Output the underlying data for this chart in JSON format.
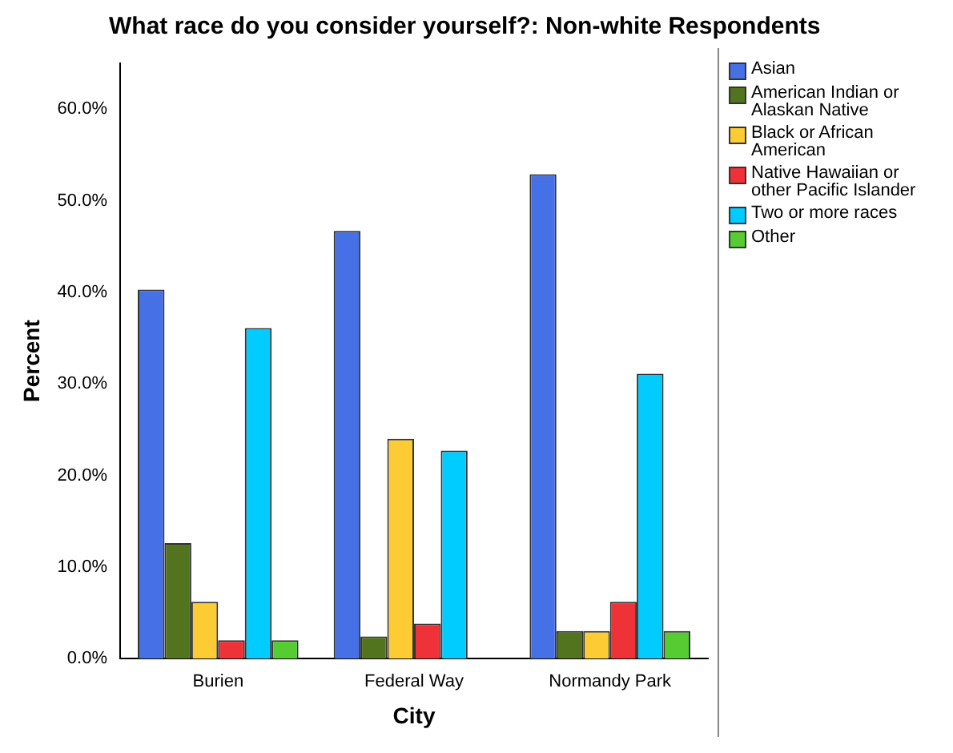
{
  "chart_data": {
    "type": "bar",
    "title": "What race do you consider yourself?: Non-white Respondents",
    "xlabel": "City",
    "ylabel": "Percent",
    "categories": [
      "Burien",
      "Federal Way",
      "Normandy Park"
    ],
    "series": [
      {
        "name": "Asian",
        "color": "#4670e6",
        "values": [
          40.3,
          46.7,
          52.9
        ]
      },
      {
        "name": "American Indian or Alaskan Native",
        "color": "#52741f",
        "values": [
          12.6,
          2.4,
          3.0
        ]
      },
      {
        "name": "Black or African American",
        "color": "#fdcb33",
        "values": [
          6.2,
          24.0,
          3.0
        ]
      },
      {
        "name": "Native Hawaiian or other Pacific Islander",
        "color": "#ef3138",
        "values": [
          2.0,
          3.8,
          6.2
        ]
      },
      {
        "name": "Two or more races",
        "color": "#00ccff",
        "values": [
          36.1,
          22.7,
          31.1
        ]
      },
      {
        "name": "Other",
        "color": "#56cc33",
        "values": [
          2.0,
          null,
          3.0
        ]
      }
    ],
    "ylim": [
      0,
      65
    ],
    "yticks": [
      {
        "value": 0,
        "label": "0.0%"
      },
      {
        "value": 10,
        "label": "10.0%"
      },
      {
        "value": 20,
        "label": "20.0%"
      },
      {
        "value": 30,
        "label": "30.0%"
      },
      {
        "value": 40,
        "label": "40.0%"
      },
      {
        "value": 50,
        "label": "50.0%"
      },
      {
        "value": 60,
        "label": "60.0%"
      }
    ],
    "grid": false,
    "legend": "right"
  }
}
